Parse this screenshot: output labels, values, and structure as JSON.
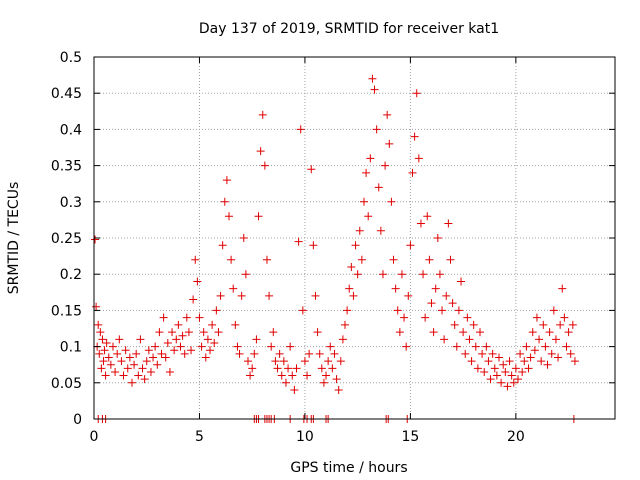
{
  "chart_data": {
    "type": "scatter",
    "title": "Day 137 of 2019, SRMTID for receiver kat1",
    "xlabel": "GPS time / hours",
    "ylabel": "SRMTID / TECUs",
    "xlim": [
      0,
      24.7
    ],
    "ylim": [
      0,
      0.5
    ],
    "xticks": [
      0,
      5,
      10,
      15,
      20
    ],
    "yticks": [
      0,
      0.05,
      0.1,
      0.15,
      0.2,
      0.25,
      0.3,
      0.35,
      0.4,
      0.45,
      0.5
    ],
    "xtick_labels": [
      "0",
      "5",
      "10",
      "15",
      "20"
    ],
    "ytick_labels": [
      "0",
      "0.05",
      "0.1",
      "0.15",
      "0.2",
      "0.25",
      "0.3",
      "0.35",
      "0.4",
      "0.45",
      "0.5"
    ],
    "grid": true,
    "marker": "+",
    "color": "#e00000",
    "series": [
      {
        "name": "kat1",
        "points": [
          [
            0.05,
            0.248
          ],
          [
            0.1,
            0.155
          ],
          [
            0.15,
            0.1
          ],
          [
            0.2,
            0.13
          ],
          [
            0.25,
            0.09
          ],
          [
            0.3,
            0.12
          ],
          [
            0.35,
            0.07
          ],
          [
            0.4,
            0.11
          ],
          [
            0.45,
            0.08
          ],
          [
            0.5,
            0.095
          ],
          [
            0.55,
            0.06
          ],
          [
            0.6,
            0.105
          ],
          [
            0.7,
            0.085
          ],
          [
            0.8,
            0.075
          ],
          [
            0.9,
            0.1
          ],
          [
            1.0,
            0.065
          ],
          [
            1.1,
            0.09
          ],
          [
            1.2,
            0.11
          ],
          [
            1.3,
            0.08
          ],
          [
            1.4,
            0.06
          ],
          [
            1.5,
            0.095
          ],
          [
            1.6,
            0.07
          ],
          [
            1.7,
            0.085
          ],
          [
            1.8,
            0.05
          ],
          [
            1.9,
            0.075
          ],
          [
            2.0,
            0.09
          ],
          [
            2.1,
            0.06
          ],
          [
            2.2,
            0.11
          ],
          [
            2.3,
            0.07
          ],
          [
            2.4,
            0.055
          ],
          [
            2.5,
            0.08
          ],
          [
            2.6,
            0.095
          ],
          [
            2.7,
            0.065
          ],
          [
            2.8,
            0.085
          ],
          [
            2.9,
            0.1
          ],
          [
            3.0,
            0.075
          ],
          [
            3.1,
            0.12
          ],
          [
            3.2,
            0.09
          ],
          [
            3.3,
            0.14
          ],
          [
            3.4,
            0.085
          ],
          [
            3.5,
            0.105
          ],
          [
            3.6,
            0.065
          ],
          [
            3.7,
            0.12
          ],
          [
            3.8,
            0.095
          ],
          [
            3.9,
            0.11
          ],
          [
            4.0,
            0.13
          ],
          [
            4.1,
            0.1
          ],
          [
            4.2,
            0.115
          ],
          [
            4.3,
            0.09
          ],
          [
            4.4,
            0.14
          ],
          [
            4.5,
            0.12
          ],
          [
            4.6,
            0.095
          ],
          [
            4.7,
            0.165
          ],
          [
            4.8,
            0.22
          ],
          [
            4.9,
            0.19
          ],
          [
            5.0,
            0.14
          ],
          [
            5.1,
            0.1
          ],
          [
            5.2,
            0.12
          ],
          [
            5.3,
            0.085
          ],
          [
            5.4,
            0.11
          ],
          [
            5.5,
            0.095
          ],
          [
            5.6,
            0.13
          ],
          [
            5.7,
            0.105
          ],
          [
            5.8,
            0.15
          ],
          [
            5.9,
            0.12
          ],
          [
            6.0,
            0.17
          ],
          [
            6.1,
            0.24
          ],
          [
            6.2,
            0.3
          ],
          [
            6.3,
            0.33
          ],
          [
            6.4,
            0.28
          ],
          [
            6.5,
            0.22
          ],
          [
            6.6,
            0.18
          ],
          [
            6.7,
            0.13
          ],
          [
            6.8,
            0.1
          ],
          [
            6.9,
            0.09
          ],
          [
            7.0,
            0.17
          ],
          [
            7.1,
            0.25
          ],
          [
            7.2,
            0.2
          ],
          [
            7.3,
            0.08
          ],
          [
            7.4,
            0.06
          ],
          [
            7.5,
            0.07
          ],
          [
            7.6,
            0.09
          ],
          [
            7.7,
            0.11
          ],
          [
            7.8,
            0.28
          ],
          [
            7.9,
            0.37
          ],
          [
            8.0,
            0.42
          ],
          [
            8.1,
            0.35
          ],
          [
            8.2,
            0.22
          ],
          [
            8.3,
            0.17
          ],
          [
            8.4,
            0.1
          ],
          [
            8.5,
            0.12
          ],
          [
            8.6,
            0.08
          ],
          [
            8.7,
            0.07
          ],
          [
            8.8,
            0.09
          ],
          [
            8.9,
            0.06
          ],
          [
            9.0,
            0.08
          ],
          [
            9.1,
            0.05
          ],
          [
            9.2,
            0.07
          ],
          [
            9.3,
            0.1
          ],
          [
            9.4,
            0.06
          ],
          [
            9.5,
            0.04
          ],
          [
            9.6,
            0.07
          ],
          [
            9.7,
            0.245
          ],
          [
            9.8,
            0.4
          ],
          [
            9.9,
            0.15
          ],
          [
            10.0,
            0.08
          ],
          [
            10.1,
            0.06
          ],
          [
            10.2,
            0.09
          ],
          [
            10.3,
            0.345
          ],
          [
            10.4,
            0.24
          ],
          [
            10.5,
            0.17
          ],
          [
            10.6,
            0.12
          ],
          [
            10.7,
            0.09
          ],
          [
            10.8,
            0.07
          ],
          [
            10.9,
            0.05
          ],
          [
            11.0,
            0.06
          ],
          [
            11.1,
            0.08
          ],
          [
            11.2,
            0.1
          ],
          [
            11.3,
            0.07
          ],
          [
            11.4,
            0.09
          ],
          [
            11.5,
            0.055
          ],
          [
            11.6,
            0.04
          ],
          [
            11.7,
            0.08
          ],
          [
            11.8,
            0.11
          ],
          [
            11.9,
            0.13
          ],
          [
            12.0,
            0.15
          ],
          [
            12.1,
            0.18
          ],
          [
            12.2,
            0.21
          ],
          [
            12.3,
            0.17
          ],
          [
            12.4,
            0.24
          ],
          [
            12.5,
            0.2
          ],
          [
            12.6,
            0.26
          ],
          [
            12.7,
            0.22
          ],
          [
            12.8,
            0.3
          ],
          [
            12.9,
            0.34
          ],
          [
            13.0,
            0.28
          ],
          [
            13.1,
            0.36
          ],
          [
            13.2,
            0.47
          ],
          [
            13.3,
            0.455
          ],
          [
            13.4,
            0.4
          ],
          [
            13.5,
            0.32
          ],
          [
            13.6,
            0.26
          ],
          [
            13.7,
            0.2
          ],
          [
            13.8,
            0.35
          ],
          [
            13.9,
            0.42
          ],
          [
            14.0,
            0.38
          ],
          [
            14.1,
            0.3
          ],
          [
            14.2,
            0.22
          ],
          [
            14.3,
            0.18
          ],
          [
            14.4,
            0.15
          ],
          [
            14.5,
            0.12
          ],
          [
            14.6,
            0.2
          ],
          [
            14.7,
            0.14
          ],
          [
            14.8,
            0.1
          ],
          [
            14.9,
            0.17
          ],
          [
            15.0,
            0.24
          ],
          [
            15.1,
            0.34
          ],
          [
            15.2,
            0.39
          ],
          [
            15.3,
            0.45
          ],
          [
            15.4,
            0.36
          ],
          [
            15.5,
            0.27
          ],
          [
            15.6,
            0.2
          ],
          [
            15.7,
            0.14
          ],
          [
            15.8,
            0.28
          ],
          [
            15.9,
            0.22
          ],
          [
            16.0,
            0.16
          ],
          [
            16.1,
            0.12
          ],
          [
            16.2,
            0.18
          ],
          [
            16.3,
            0.25
          ],
          [
            16.4,
            0.2
          ],
          [
            16.5,
            0.15
          ],
          [
            16.6,
            0.11
          ],
          [
            16.7,
            0.17
          ],
          [
            16.8,
            0.27
          ],
          [
            16.9,
            0.22
          ],
          [
            17.0,
            0.16
          ],
          [
            17.1,
            0.13
          ],
          [
            17.2,
            0.1
          ],
          [
            17.3,
            0.15
          ],
          [
            17.4,
            0.19
          ],
          [
            17.5,
            0.12
          ],
          [
            17.6,
            0.09
          ],
          [
            17.7,
            0.14
          ],
          [
            17.8,
            0.11
          ],
          [
            17.9,
            0.08
          ],
          [
            18.0,
            0.13
          ],
          [
            18.1,
            0.1
          ],
          [
            18.2,
            0.07
          ],
          [
            18.3,
            0.12
          ],
          [
            18.4,
            0.09
          ],
          [
            18.5,
            0.065
          ],
          [
            18.6,
            0.1
          ],
          [
            18.7,
            0.08
          ],
          [
            18.8,
            0.055
          ],
          [
            18.9,
            0.09
          ],
          [
            19.0,
            0.07
          ],
          [
            19.1,
            0.06
          ],
          [
            19.2,
            0.085
          ],
          [
            19.3,
            0.05
          ],
          [
            19.4,
            0.075
          ],
          [
            19.5,
            0.065
          ],
          [
            19.6,
            0.045
          ],
          [
            19.7,
            0.08
          ],
          [
            19.8,
            0.06
          ],
          [
            19.9,
            0.05
          ],
          [
            20.0,
            0.07
          ],
          [
            20.1,
            0.055
          ],
          [
            20.2,
            0.09
          ],
          [
            20.3,
            0.065
          ],
          [
            20.4,
            0.08
          ],
          [
            20.5,
            0.1
          ],
          [
            20.6,
            0.07
          ],
          [
            20.7,
            0.085
          ],
          [
            20.8,
            0.12
          ],
          [
            20.9,
            0.095
          ],
          [
            21.0,
            0.14
          ],
          [
            21.1,
            0.11
          ],
          [
            21.2,
            0.08
          ],
          [
            21.3,
            0.13
          ],
          [
            21.4,
            0.1
          ],
          [
            21.5,
            0.075
          ],
          [
            21.6,
            0.12
          ],
          [
            21.7,
            0.09
          ],
          [
            21.8,
            0.15
          ],
          [
            21.9,
            0.11
          ],
          [
            22.0,
            0.085
          ],
          [
            22.1,
            0.13
          ],
          [
            22.2,
            0.18
          ],
          [
            22.3,
            0.14
          ],
          [
            22.4,
            0.1
          ],
          [
            22.5,
            0.12
          ],
          [
            22.6,
            0.09
          ],
          [
            22.7,
            0.13
          ],
          [
            22.8,
            0.08
          ],
          [
            0.2,
            0
          ],
          [
            0.4,
            0
          ],
          [
            0.55,
            0
          ],
          [
            7.6,
            0
          ],
          [
            7.7,
            0
          ],
          [
            7.8,
            0
          ],
          [
            8.1,
            0
          ],
          [
            8.2,
            0
          ],
          [
            8.3,
            0
          ],
          [
            8.4,
            0
          ],
          [
            8.55,
            0
          ],
          [
            9.3,
            0
          ],
          [
            9.95,
            0
          ],
          [
            10.1,
            0
          ],
          [
            10.3,
            0
          ],
          [
            10.4,
            0
          ],
          [
            11.0,
            0
          ],
          [
            11.1,
            0
          ],
          [
            13.85,
            0
          ],
          [
            13.95,
            0
          ],
          [
            14.85,
            0
          ],
          [
            22.75,
            0
          ]
        ]
      }
    ]
  }
}
